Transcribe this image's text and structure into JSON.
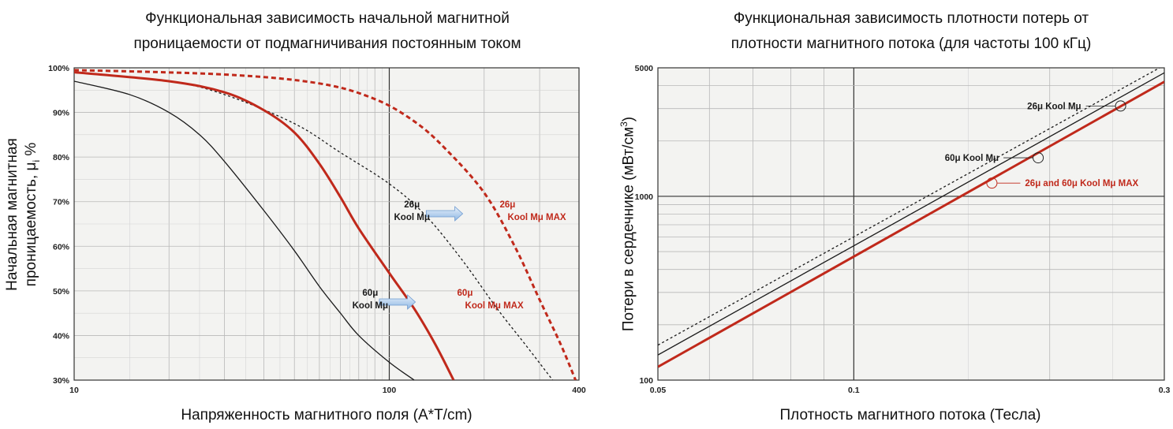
{
  "chart_data": [
    {
      "type": "line",
      "title_line1": "Функциональная зависимость начальной магнитной",
      "title_line2": "проницаемости от подмагничивания постоянным током",
      "xlabel": "Напряженность магнитного поля (А*Т/cm)",
      "ylabel_line1": "Начальная магнитная",
      "ylabel_line2": "проницаемость, μ",
      "ylabel_sub": "i",
      "ylabel_suffix": " %",
      "x_scale": "log",
      "xlim": [
        10,
        400
      ],
      "ylim": [
        30,
        100
      ],
      "x_ticks": [
        10,
        100,
        400
      ],
      "x_tick_labels": [
        "10",
        "100",
        "400"
      ],
      "y_ticks": [
        30,
        40,
        50,
        60,
        70,
        80,
        90,
        100
      ],
      "y_tick_labels": [
        "30%",
        "40%",
        "50%",
        "60%",
        "70%",
        "80%",
        "90%",
        "100%"
      ],
      "grid": true,
      "series": [
        {
          "name": "60μ Kool Mμ",
          "color": "#1a1a1a",
          "style": "solid",
          "width": 1.3,
          "x": [
            10,
            15,
            20,
            25,
            30,
            40,
            50,
            60,
            70,
            80,
            100,
            120
          ],
          "y": [
            97,
            94,
            90,
            85,
            79,
            68,
            59,
            51,
            45,
            40,
            34,
            30
          ]
        },
        {
          "name": "26μ Kool Mμ",
          "color": "#1a1a1a",
          "style": "dashed",
          "width": 1.3,
          "x": [
            10,
            20,
            30,
            50,
            70,
            100,
            130,
            170,
            220,
            270,
            330
          ],
          "y": [
            99,
            97,
            94,
            87.5,
            81,
            74,
            67,
            57,
            46,
            38,
            30
          ]
        },
        {
          "name": "60μ Kool Mμ MAX",
          "color": "#c0291b",
          "style": "solid",
          "width": 3,
          "x": [
            10,
            20,
            30,
            40,
            50,
            60,
            70,
            80,
            100,
            120,
            140,
            160
          ],
          "y": [
            99,
            97,
            94.5,
            90.5,
            85.5,
            78.5,
            71,
            64,
            54,
            46,
            38,
            30
          ]
        },
        {
          "name": "26μ Kool Mμ MAX",
          "color": "#c0291b",
          "style": "dashed",
          "width": 3,
          "x": [
            10,
            30,
            60,
            90,
            120,
            150,
            200,
            250,
            300,
            350,
            390
          ],
          "y": [
            99.5,
            98.5,
            96.5,
            93,
            88,
            82,
            72,
            60,
            48,
            38,
            30
          ]
        }
      ],
      "annotations": [
        {
          "lines": [
            "26μ",
            "Kool Mμ"
          ],
          "color": "#1a1a1a",
          "x": 118,
          "y": 67.3
        },
        {
          "lines": [
            "26μ",
            "Kool Mμ MAX"
          ],
          "color": "#c0291b",
          "x": 232,
          "y": 67.3
        },
        {
          "lines": [
            "60μ",
            "Kool Mμ"
          ],
          "color": "#1a1a1a",
          "x": 87,
          "y": 47.5
        },
        {
          "lines": [
            "60μ",
            "Kool Mμ MAX"
          ],
          "color": "#c0291b",
          "x": 170,
          "y": 47.5
        }
      ]
    },
    {
      "type": "line",
      "title_line1": "Функциональная зависимость плотности потерь  от",
      "title_line2": "плотности  магнитного потока  (для частоты 100 кГц)",
      "xlabel": "Плотность магнитного потока (Тесла)",
      "ylabel": "Потери в сердечнике (мВт/см",
      "ylabel_sup": "3",
      "ylabel_suffix": ")",
      "x_scale": "log",
      "y_scale": "log",
      "xlim": [
        0.05,
        0.3
      ],
      "ylim": [
        100,
        5000
      ],
      "x_ticks": [
        0.05,
        0.1,
        0.3
      ],
      "x_tick_labels": [
        "0.05",
        "0.1",
        "0.3"
      ],
      "y_ticks": [
        100,
        1000,
        5000
      ],
      "y_tick_labels": [
        "100",
        "1000",
        "5000"
      ],
      "grid": true,
      "series": [
        {
          "name": "26μ Kool Mμ",
          "color": "#1a1a1a",
          "style": "dashed",
          "width": 1.3,
          "x": [
            0.05,
            0.295
          ],
          "y": [
            155,
            5000
          ]
        },
        {
          "name": "60μ Kool Mμ",
          "color": "#1a1a1a",
          "style": "solid",
          "width": 1.3,
          "x": [
            0.05,
            0.3
          ],
          "y": [
            137,
            4700
          ]
        },
        {
          "name": "26μ and 60μ Kool Mμ MAX",
          "color": "#c0291b",
          "style": "solid",
          "width": 3,
          "x": [
            0.05,
            0.3
          ],
          "y": [
            118,
            4200
          ]
        }
      ],
      "annotations": [
        {
          "text": "26μ Kool Mμ",
          "color": "#1a1a1a",
          "point": [
            0.257,
            3100
          ]
        },
        {
          "text": "60μ Kool Mμ",
          "color": "#1a1a1a",
          "point": [
            0.192,
            1620
          ]
        },
        {
          "text": "26μ and 60μ Kool Mμ MAX",
          "color": "#c0291b",
          "point": [
            0.163,
            1180
          ]
        }
      ]
    }
  ]
}
